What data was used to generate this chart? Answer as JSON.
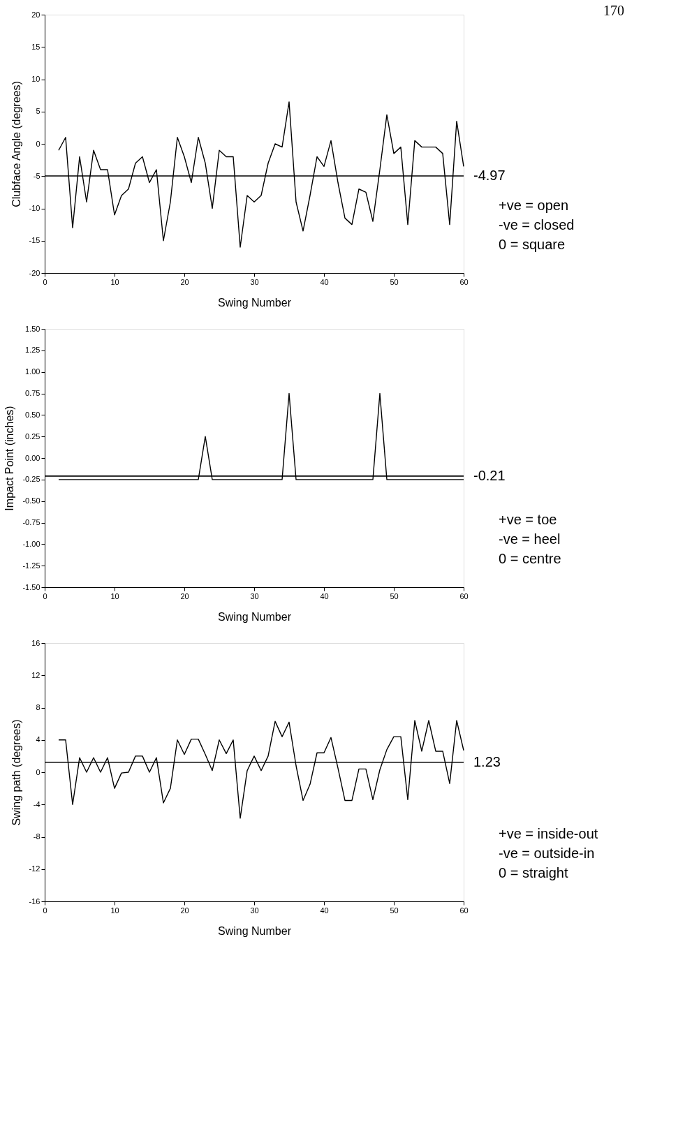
{
  "chart_data": [
    {
      "type": "line",
      "xlabel": "Swing Number",
      "ylabel": "Clubface Angle (degrees)",
      "x": [
        2,
        3,
        4,
        5,
        6,
        7,
        8,
        9,
        10,
        11,
        12,
        13,
        14,
        15,
        16,
        17,
        18,
        19,
        20,
        21,
        22,
        23,
        24,
        25,
        26,
        27,
        28,
        29,
        30,
        31,
        32,
        33,
        34,
        35,
        36,
        37,
        38,
        39,
        40,
        41,
        42,
        43,
        44,
        45,
        46,
        47,
        48,
        49,
        50,
        51,
        52,
        53,
        54,
        55,
        56,
        57,
        58,
        59,
        60
      ],
      "series": [
        {
          "color": "#000000",
          "values": [
            -1,
            1,
            -13,
            -2,
            -9,
            -1,
            -4,
            -4,
            -11,
            -8,
            -7,
            -3,
            -2,
            -6,
            -4,
            -15,
            -9,
            1,
            -2,
            -6,
            1,
            -3,
            -10,
            -1,
            -2,
            -2,
            -16,
            -8,
            -9,
            -8,
            -3,
            0,
            -0.5,
            6.5,
            -9,
            -13.5,
            -8,
            -2,
            -3.5,
            0.5,
            -6,
            -11.5,
            -12.5,
            -7,
            -7.5,
            -12,
            -4,
            4.5,
            -1.5,
            -0.5,
            -12.5,
            0.5,
            -0.5,
            -0.5,
            -0.5,
            -1.5,
            -12.5,
            3.5,
            -3.5
          ]
        }
      ],
      "xlim": [
        0,
        60
      ],
      "xticks": [
        0,
        10,
        20,
        30,
        40,
        50,
        60
      ],
      "ylim": [
        -20,
        20
      ],
      "yticks": [
        -20,
        -15,
        -10,
        -5,
        0,
        5,
        10,
        15,
        20
      ],
      "ref_lines": [
        {
          "axis": "y",
          "value": -4.97,
          "label": "-4.97",
          "color": "#000000"
        }
      ],
      "annotations": [
        "+ve = open",
        "-ve = closed",
        "0 = square",
        "170"
      ],
      "grid": false,
      "marker": "none",
      "line_style": "solid"
    },
    {
      "type": "line",
      "xlabel": "Swing Number",
      "ylabel": "Impact Point (inches)",
      "x": [
        2,
        3,
        4,
        5,
        6,
        7,
        8,
        9,
        10,
        11,
        12,
        13,
        14,
        15,
        16,
        17,
        18,
        19,
        20,
        21,
        22,
        23,
        24,
        25,
        26,
        27,
        28,
        29,
        30,
        31,
        32,
        33,
        34,
        35,
        36,
        37,
        38,
        39,
        40,
        41,
        42,
        43,
        44,
        45,
        46,
        47,
        48,
        49,
        50,
        51,
        52,
        53,
        54,
        55,
        56,
        57,
        58,
        59,
        60
      ],
      "series": [
        {
          "color": "#000000",
          "values": [
            -0.25,
            -0.25,
            -0.25,
            -0.25,
            -0.25,
            -0.25,
            -0.25,
            -0.25,
            -0.25,
            -0.25,
            -0.25,
            -0.25,
            -0.25,
            -0.25,
            -0.25,
            -0.25,
            -0.25,
            -0.25,
            -0.25,
            -0.25,
            -0.25,
            0.25,
            -0.25,
            -0.25,
            -0.25,
            -0.25,
            -0.25,
            -0.25,
            -0.25,
            -0.25,
            -0.25,
            -0.25,
            -0.25,
            0.75,
            -0.25,
            -0.25,
            -0.25,
            -0.25,
            -0.25,
            -0.25,
            -0.25,
            -0.25,
            -0.25,
            -0.25,
            -0.25,
            -0.25,
            0.75,
            -0.25,
            -0.25,
            -0.25,
            -0.25,
            -0.25,
            -0.25,
            -0.25,
            -0.25,
            -0.25,
            -0.25,
            -0.25,
            -0.25
          ]
        }
      ],
      "xlim": [
        0,
        60
      ],
      "xticks": [
        0,
        10,
        20,
        30,
        40,
        50,
        60
      ],
      "ylim": [
        -1.5,
        1.5
      ],
      "yticks": [
        {
          "value": -1.5,
          "label": "-1.50"
        },
        {
          "value": -1.25,
          "label": "-1.25"
        },
        {
          "value": -1,
          "label": "-1.00"
        },
        {
          "value": -0.75,
          "label": "-0.75"
        },
        {
          "value": -0.5,
          "label": "-0.50"
        },
        {
          "value": -0.25,
          "label": "-0.25"
        },
        {
          "value": 0,
          "label": "0.00"
        },
        {
          "value": 0.25,
          "label": "0.25"
        },
        {
          "value": 0.5,
          "label": "0.50"
        },
        {
          "value": 0.75,
          "label": "0.75"
        },
        {
          "value": 1,
          "label": "1.00"
        },
        {
          "value": 1.25,
          "label": "1.25"
        },
        {
          "value": 1.5,
          "label": "1.50"
        }
      ],
      "ref_lines": [
        {
          "axis": "y",
          "value": -0.21,
          "label": "-0.21",
          "color": "#000000"
        }
      ],
      "annotations": [
        "+ve = toe",
        "-ve = heel",
        "0 = centre"
      ],
      "grid": false,
      "marker": "none",
      "line_style": "solid"
    },
    {
      "type": "line",
      "xlabel": "Swing Number",
      "ylabel": "Swing path (degrees)",
      "x": [
        2,
        3,
        4,
        5,
        6,
        7,
        8,
        9,
        10,
        11,
        12,
        13,
        14,
        15,
        16,
        17,
        18,
        19,
        20,
        21,
        22,
        23,
        24,
        25,
        26,
        27,
        28,
        29,
        30,
        31,
        32,
        33,
        34,
        35,
        36,
        37,
        38,
        39,
        40,
        41,
        42,
        43,
        44,
        45,
        46,
        47,
        48,
        49,
        50,
        51,
        52,
        53,
        54,
        55,
        56,
        57,
        58,
        59,
        60
      ],
      "series": [
        {
          "color": "#000000",
          "values": [
            4,
            4,
            -4,
            1.8,
            0,
            1.8,
            0,
            1.8,
            -2,
            -0.1,
            0,
            2,
            2,
            0,
            1.8,
            -3.8,
            -2,
            4,
            2.2,
            4.1,
            4.1,
            2.2,
            0.2,
            4,
            2.3,
            4,
            -5.7,
            0.2,
            2,
            0.2,
            2,
            6.3,
            4.4,
            6.2,
            0.8,
            -3.5,
            -1.5,
            2.4,
            2.4,
            4.3,
            0.5,
            -3.5,
            -3.5,
            0.4,
            0.4,
            -3.4,
            0.3,
            2.8,
            4.4,
            4.4,
            -3.4,
            6.4,
            2.6,
            6.4,
            2.6,
            2.6,
            -1.4,
            6.4,
            2.7
          ]
        }
      ],
      "xlim": [
        0,
        60
      ],
      "xticks": [
        0,
        10,
        20,
        30,
        40,
        50,
        60
      ],
      "ylim": [
        -16,
        16
      ],
      "yticks": [
        -16,
        -12,
        -8,
        -4,
        0,
        4,
        8,
        12,
        16
      ],
      "ref_lines": [
        {
          "axis": "y",
          "value": 1.23,
          "label": "1.23",
          "color": "#000000"
        }
      ],
      "annotations": [
        "+ve = inside-out",
        "-ve = outside-in",
        "0 = straight"
      ],
      "grid": false,
      "marker": "none",
      "line_style": "solid"
    }
  ]
}
